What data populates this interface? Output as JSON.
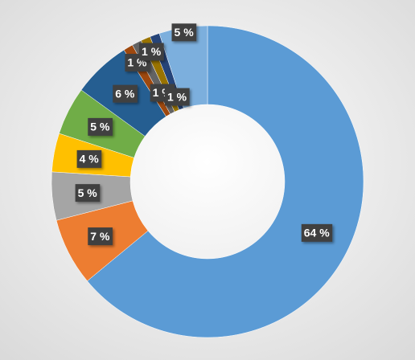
{
  "chart_data": {
    "type": "donut",
    "values": [
      64,
      7,
      5,
      4,
      5,
      6,
      1,
      1,
      1,
      1,
      5
    ],
    "value_labels": [
      "64 %",
      "7 %",
      "5 %",
      "4 %",
      "5 %",
      "6 %",
      "1 %",
      "1 %",
      "1 %",
      "1 %",
      "5 %"
    ],
    "colors": [
      "#5b9bd5",
      "#ed7d31",
      "#a5a5a5",
      "#ffc000",
      "#70ad47",
      "#255e91",
      "#9e480e",
      "#636363",
      "#997300",
      "#264478",
      "#7cafdd"
    ]
  }
}
